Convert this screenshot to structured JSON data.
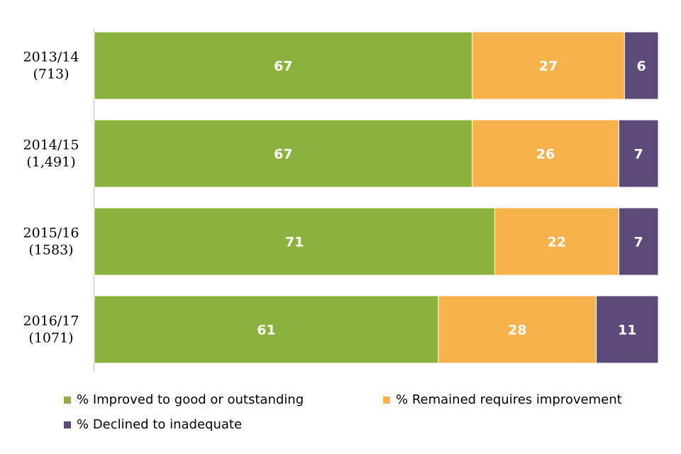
{
  "chart_data": {
    "type": "bar",
    "orientation": "horizontal",
    "stacked": true,
    "categories": [
      [
        "2013/14",
        "(713)"
      ],
      [
        "2014/15",
        "(1,491)"
      ],
      [
        "2015/16",
        "(1583)"
      ],
      [
        "2016/17",
        "(1071)"
      ]
    ],
    "series": [
      {
        "name": "% Improved to good or outstanding",
        "color": "#8bb23f",
        "values": [
          67,
          67,
          71,
          61
        ]
      },
      {
        "name": "% Remained requires improvement",
        "color": "#f8b24c",
        "values": [
          27,
          26,
          22,
          28
        ]
      },
      {
        "name": "% Declined to inadequate",
        "color": "#5c4a7a",
        "values": [
          6,
          7,
          7,
          11
        ]
      }
    ],
    "xlim": [
      0,
      100
    ],
    "grid": false,
    "legend_position": "bottom"
  }
}
